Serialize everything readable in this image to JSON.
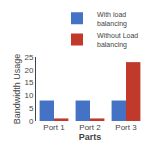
{
  "chart_data": {
    "type": "bar",
    "categories": [
      "Port 1",
      "Port 2",
      "Port 3"
    ],
    "series": [
      {
        "name": "With load\nbalancing",
        "color": "#4472c4",
        "values": [
          8,
          8,
          8
        ]
      },
      {
        "name": "Without Load\nbalancing",
        "color": "#c0392b",
        "values": [
          1,
          1,
          23
        ]
      }
    ],
    "xlabel": "Parts",
    "ylabel": "Bandwidth Usage",
    "ylim": [
      0,
      25
    ],
    "yticks": [
      0,
      5,
      10,
      15,
      20,
      25
    ],
    "grid": false,
    "legend": "upper right"
  }
}
